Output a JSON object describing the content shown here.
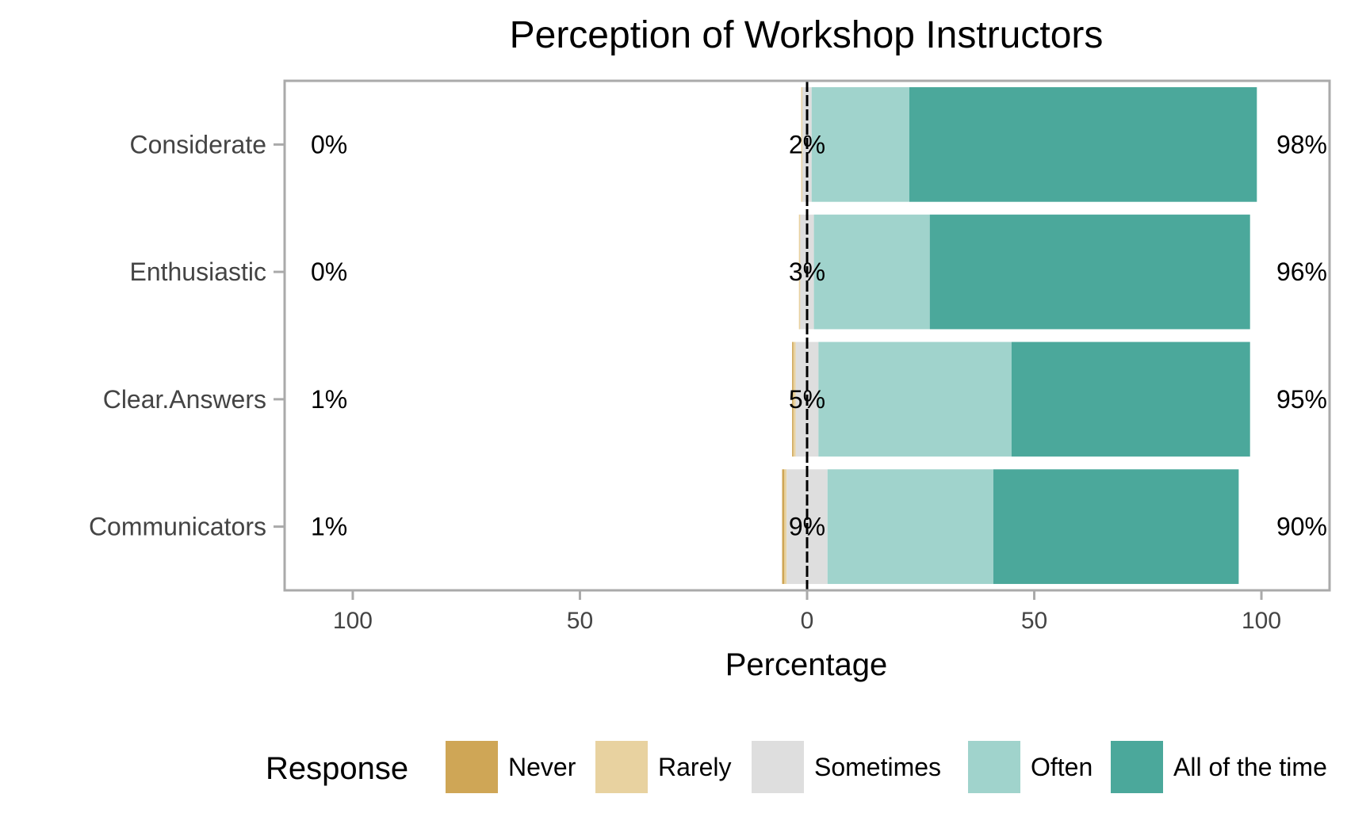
{
  "chart_data": {
    "type": "bar",
    "orientation": "horizontal",
    "stacked": "diverging",
    "title": "Perception of Workshop Instructors",
    "xlabel": "Percentage",
    "ylabel": "",
    "xlim": [
      -115,
      115
    ],
    "x_ticks": [
      -100,
      -50,
      0,
      50,
      100
    ],
    "x_tick_labels": [
      "100",
      "50",
      "0",
      "50",
      "100"
    ],
    "categories": [
      "Considerate",
      "Enthusiastic",
      "Clear.Answers",
      "Communicators"
    ],
    "series": [
      {
        "name": "Never",
        "color": "#CFA656",
        "values": [
          0,
          0,
          0.3,
          0.5
        ]
      },
      {
        "name": "Rarely",
        "color": "#E8D2A0",
        "values": [
          0.3,
          0.3,
          0.5,
          0.5
        ]
      },
      {
        "name": "Sometimes",
        "color": "#DEDEDE",
        "values": [
          2,
          3,
          5,
          9
        ]
      },
      {
        "name": "Often",
        "color": "#A0D3CC",
        "values": [
          21.5,
          25.5,
          42.5,
          36.5
        ]
      },
      {
        "name": "All of the time",
        "color": "#4BA89B",
        "values": [
          76.5,
          70.5,
          52.5,
          54
        ]
      }
    ],
    "left_labels": [
      "0%",
      "0%",
      "1%",
      "1%"
    ],
    "center_labels": [
      "2%",
      "3%",
      "5%",
      "9%"
    ],
    "right_labels": [
      "98%",
      "96%",
      "95%",
      "90%"
    ],
    "legend": {
      "title": "Response",
      "position": "bottom"
    },
    "grid": true,
    "zero_line": true
  }
}
